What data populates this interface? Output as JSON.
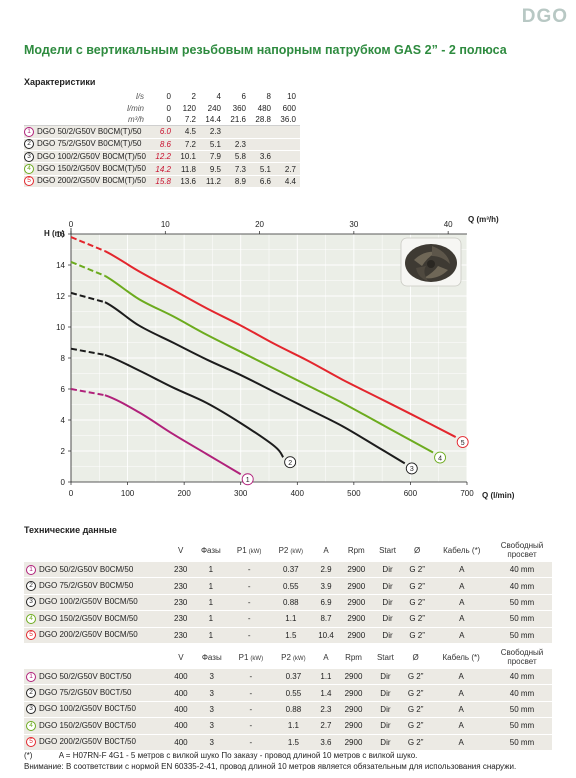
{
  "brand": "DGO",
  "title": "Модели с вертикальным резьбовым напорным патрубком GAS 2” - 2 полюса",
  "perf": {
    "section": "Характеристики",
    "units": [
      "l/s",
      "l/min",
      "m³/h"
    ],
    "header": [
      [
        "0",
        "2",
        "4",
        "6",
        "8",
        "10"
      ],
      [
        "0",
        "120",
        "240",
        "360",
        "480",
        "600"
      ],
      [
        "0",
        "7.2",
        "14.4",
        "21.6",
        "28.8",
        "36.0"
      ]
    ],
    "rows": [
      {
        "num": "1",
        "model": "DGO 50/2/G50V B0CM(T)/50",
        "h0": "6.0",
        "vals": [
          "4.5",
          "2.3",
          "",
          "",
          ""
        ],
        "color": "#b0217a"
      },
      {
        "num": "2",
        "model": "DGO 75/2/G50V B0CM(T)/50",
        "h0": "8.6",
        "vals": [
          "7.2",
          "5.1",
          "2.3",
          "",
          ""
        ],
        "color": "#222222"
      },
      {
        "num": "3",
        "model": "DGO 100/2/G50V B0CM(T)/50",
        "h0": "12.2",
        "vals": [
          "10.1",
          "7.9",
          "5.8",
          "3.6",
          ""
        ],
        "color": "#222222"
      },
      {
        "num": "4",
        "model": "DGO 150/2/G50V B0CM(T)/50",
        "h0": "14.2",
        "vals": [
          "11.8",
          "9.5",
          "7.3",
          "5.1",
          "2.7"
        ],
        "color": "#6cab1e"
      },
      {
        "num": "5",
        "model": "DGO 200/2/G50V B0CM(T)/50",
        "h0": "15.8",
        "vals": [
          "13.6",
          "11.2",
          "8.9",
          "6.6",
          "4.4"
        ],
        "color": "#e3262d"
      }
    ]
  },
  "chart_data": {
    "type": "line",
    "ylabel": "H (m)",
    "xlabel": "Q (l/min)",
    "x2label": "Q (m³/h)",
    "xlim": [
      0,
      700
    ],
    "ylim": [
      0,
      16
    ],
    "xticks": [
      "0",
      "100",
      "200",
      "300",
      "400",
      "500",
      "600",
      "700"
    ],
    "yticks": [
      "0",
      "2",
      "4",
      "6",
      "8",
      "10",
      "12",
      "14",
      "16"
    ],
    "x2ticks": [
      "0",
      "10",
      "20",
      "30",
      "40"
    ],
    "x2lim": [
      0,
      42
    ],
    "grid": true,
    "series": [
      {
        "name": "1",
        "color": "#b0217a",
        "x": [
          0,
          60,
          120,
          180,
          240,
          300
        ],
        "y": [
          6.0,
          5.6,
          4.5,
          3.1,
          1.8,
          0.5
        ]
      },
      {
        "name": "2",
        "color": "#1c1c1c",
        "x": [
          0,
          60,
          120,
          180,
          240,
          300,
          360,
          375
        ],
        "y": [
          8.6,
          8.2,
          7.2,
          6.1,
          5.1,
          3.8,
          2.3,
          1.6
        ]
      },
      {
        "name": "3",
        "color": "#1c1c1c",
        "x": [
          0,
          60,
          120,
          180,
          240,
          300,
          360,
          420,
          480,
          540,
          590
        ],
        "y": [
          12.2,
          11.6,
          10.1,
          9.0,
          7.9,
          6.9,
          5.8,
          4.7,
          3.6,
          2.3,
          1.2
        ]
      },
      {
        "name": "4",
        "color": "#6cab1e",
        "x": [
          0,
          60,
          120,
          180,
          240,
          300,
          360,
          420,
          480,
          540,
          600,
          640
        ],
        "y": [
          14.2,
          13.3,
          11.8,
          10.7,
          9.5,
          8.4,
          7.3,
          6.2,
          5.1,
          3.9,
          2.7,
          1.9
        ]
      },
      {
        "name": "5",
        "color": "#e3262d",
        "x": [
          0,
          60,
          120,
          180,
          240,
          300,
          360,
          420,
          480,
          540,
          600,
          680
        ],
        "y": [
          15.8,
          14.9,
          13.6,
          12.4,
          11.2,
          10.1,
          8.9,
          7.8,
          6.6,
          5.5,
          4.4,
          2.9
        ]
      }
    ]
  },
  "tech": {
    "section": "Технические данные",
    "header": {
      "v": "V",
      "phase": "Фазы",
      "p1": "P1",
      "p1u": "(kW)",
      "p2": "P2",
      "p2u": "(kW)",
      "a": "A",
      "rpm": "Rpm",
      "start": "Start",
      "diam": "Ø",
      "cable": "Кабель (*)",
      "pass": "Свободный просвет"
    },
    "mono": [
      {
        "num": "1",
        "color": "#b0217a",
        "model": "DGO 50/2/G50V B0CM/50",
        "v": "230",
        "phase": "1",
        "p1": "-",
        "p2": "0.37",
        "a": "2.9",
        "rpm": "2900",
        "start": "Dir",
        "diam": "G 2”",
        "cable": "A",
        "pass": "40 mm"
      },
      {
        "num": "2",
        "color": "#222222",
        "model": "DGO 75/2/G50V B0CM/50",
        "v": "230",
        "phase": "1",
        "p1": "-",
        "p2": "0.55",
        "a": "3.9",
        "rpm": "2900",
        "start": "Dir",
        "diam": "G 2”",
        "cable": "A",
        "pass": "40 mm"
      },
      {
        "num": "3",
        "color": "#222222",
        "model": "DGO 100/2/G50V B0CM/50",
        "v": "230",
        "phase": "1",
        "p1": "-",
        "p2": "0.88",
        "a": "6.9",
        "rpm": "2900",
        "start": "Dir",
        "diam": "G 2”",
        "cable": "A",
        "pass": "50 mm"
      },
      {
        "num": "4",
        "color": "#6cab1e",
        "model": "DGO 150/2/G50V B0CM/50",
        "v": "230",
        "phase": "1",
        "p1": "-",
        "p2": "1.1",
        "a": "8.7",
        "rpm": "2900",
        "start": "Dir",
        "diam": "G 2”",
        "cable": "A",
        "pass": "50 mm"
      },
      {
        "num": "5",
        "color": "#e3262d",
        "model": "DGO 200/2/G50V B0CM/50",
        "v": "230",
        "phase": "1",
        "p1": "-",
        "p2": "1.5",
        "a": "10.4",
        "rpm": "2900",
        "start": "Dir",
        "diam": "G 2”",
        "cable": "A",
        "pass": "50 mm"
      }
    ],
    "tri": [
      {
        "num": "1",
        "color": "#b0217a",
        "model": "DGO 50/2/G50V B0CT/50",
        "v": "400",
        "phase": "3",
        "p1": "-",
        "p2": "0.37",
        "a": "1.1",
        "rpm": "2900",
        "start": "Dir",
        "diam": "G 2”",
        "cable": "A",
        "pass": "40 mm"
      },
      {
        "num": "2",
        "color": "#222222",
        "model": "DGO 75/2/G50V B0CT/50",
        "v": "400",
        "phase": "3",
        "p1": "-",
        "p2": "0.55",
        "a": "1.4",
        "rpm": "2900",
        "start": "Dir",
        "diam": "G 2”",
        "cable": "A",
        "pass": "40 mm"
      },
      {
        "num": "3",
        "color": "#222222",
        "model": "DGO 100/2/G50V B0CT/50",
        "v": "400",
        "phase": "3",
        "p1": "-",
        "p2": "0.88",
        "a": "2.3",
        "rpm": "2900",
        "start": "Dir",
        "diam": "G 2”",
        "cable": "A",
        "pass": "50 mm"
      },
      {
        "num": "4",
        "color": "#6cab1e",
        "model": "DGO 150/2/G50V B0CT/50",
        "v": "400",
        "phase": "3",
        "p1": "-",
        "p2": "1.1",
        "a": "2.7",
        "rpm": "2900",
        "start": "Dir",
        "diam": "G 2”",
        "cable": "A",
        "pass": "50 mm"
      },
      {
        "num": "5",
        "color": "#e3262d",
        "model": "DGO 200/2/G50V B0CT/50",
        "v": "400",
        "phase": "3",
        "p1": "-",
        "p2": "1.5",
        "a": "3.6",
        "rpm": "2900",
        "start": "Dir",
        "diam": "G 2”",
        "cable": "A",
        "pass": "50 mm"
      }
    ]
  },
  "footnotes": {
    "mark": "(*)",
    "line1": "A = H07RN-F 4G1 - 5 метров с вилкой шуко По заказу - провод длиной 10 метров с вилкой шуко.",
    "line2": "Внимание: В соответствии с нормой EN 60335-2-41, провод длиной 10 метров является обязательным для использования снаружи."
  }
}
